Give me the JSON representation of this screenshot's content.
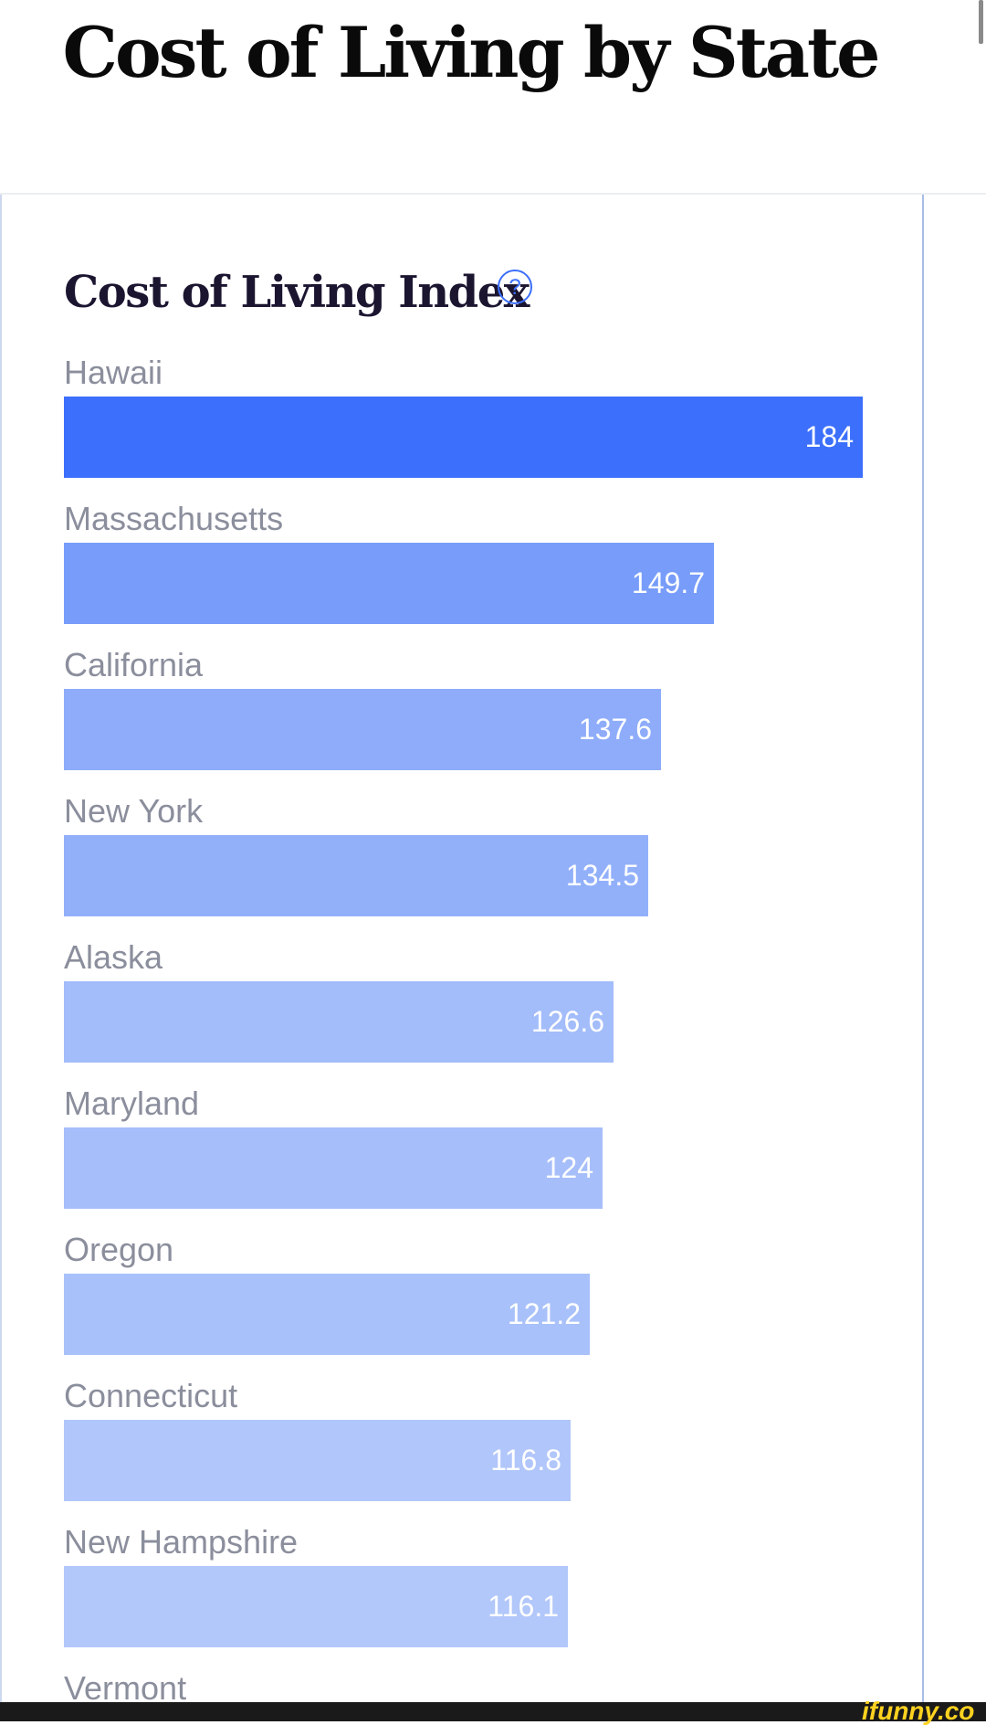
{
  "page": {
    "title": "Cost of Living by State"
  },
  "colors": {
    "highlight_bar": "#3c6ffb",
    "label_text": "#8b8e9c",
    "heading_text": "#1c1530",
    "help_icon": "#3c6ffb"
  },
  "icons": {
    "help": "question-circle-icon"
  },
  "chart_data": {
    "type": "bar",
    "orientation": "horizontal",
    "title": "Cost of Living Index",
    "categories": [
      "Hawaii",
      "Massachusetts",
      "California",
      "New York",
      "Alaska",
      "Maryland",
      "Oregon",
      "Connecticut",
      "New Hampshire",
      "Vermont"
    ],
    "values": [
      184,
      149.7,
      137.6,
      134.5,
      126.6,
      124,
      121.2,
      116.8,
      116.1,
      null
    ],
    "value_labels": [
      "184",
      "149.7",
      "137.6",
      "134.5",
      "126.6",
      "124",
      "121.2",
      "116.8",
      "116.1",
      ""
    ],
    "bar_colors": [
      "#3c6ffb",
      "#779cfa",
      "#8eacfa",
      "#92b0fa",
      "#a3bcfa",
      "#a6befa",
      "#a9c1fa",
      "#b1c6fa",
      "#b2c7fa",
      "#b5c9fa"
    ],
    "xlim": [
      0,
      184
    ],
    "grid": false,
    "legend": "none"
  },
  "watermark": {
    "text": "ifunny.co"
  }
}
